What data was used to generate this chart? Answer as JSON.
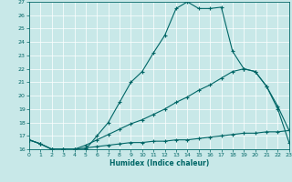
{
  "xlabel": "Humidex (Indice chaleur)",
  "xlim": [
    0,
    23
  ],
  "ylim": [
    16,
    27
  ],
  "yticks": [
    16,
    17,
    18,
    19,
    20,
    21,
    22,
    23,
    24,
    25,
    26,
    27
  ],
  "xticks": [
    0,
    1,
    2,
    3,
    4,
    5,
    6,
    7,
    8,
    9,
    10,
    11,
    12,
    13,
    14,
    15,
    16,
    17,
    18,
    19,
    20,
    21,
    22,
    23
  ],
  "bg_color": "#c8e8e8",
  "line_color": "#006666",
  "line1_x": [
    0,
    1,
    2,
    3,
    4,
    5,
    6,
    7,
    8,
    9,
    10,
    11,
    12,
    13,
    14,
    15,
    16,
    17,
    18,
    19,
    20,
    21,
    22,
    23
  ],
  "line1_y": [
    16.7,
    16.4,
    16.0,
    16.0,
    16.0,
    16.0,
    17.0,
    18.0,
    19.5,
    21.0,
    21.8,
    23.2,
    24.5,
    26.5,
    27.0,
    26.5,
    26.5,
    26.6,
    23.3,
    22.0,
    21.8,
    20.7,
    19.0,
    16.5
  ],
  "line2_x": [
    0,
    1,
    2,
    3,
    4,
    5,
    6,
    7,
    8,
    9,
    10,
    11,
    12,
    13,
    14,
    15,
    16,
    17,
    18,
    19,
    20,
    21,
    22,
    23
  ],
  "line2_y": [
    16.7,
    16.4,
    16.0,
    16.0,
    16.0,
    16.3,
    16.7,
    17.1,
    17.5,
    17.9,
    18.2,
    18.6,
    19.0,
    19.5,
    19.9,
    20.4,
    20.8,
    21.3,
    21.8,
    22.0,
    21.8,
    20.7,
    19.2,
    17.4
  ],
  "line3_x": [
    0,
    1,
    2,
    3,
    4,
    5,
    6,
    7,
    8,
    9,
    10,
    11,
    12,
    13,
    14,
    15,
    16,
    17,
    18,
    19,
    20,
    21,
    22,
    23
  ],
  "line3_y": [
    16.7,
    16.4,
    16.0,
    16.0,
    16.0,
    16.1,
    16.2,
    16.3,
    16.4,
    16.5,
    16.5,
    16.6,
    16.6,
    16.7,
    16.7,
    16.8,
    16.9,
    17.0,
    17.1,
    17.2,
    17.2,
    17.3,
    17.3,
    17.4
  ]
}
